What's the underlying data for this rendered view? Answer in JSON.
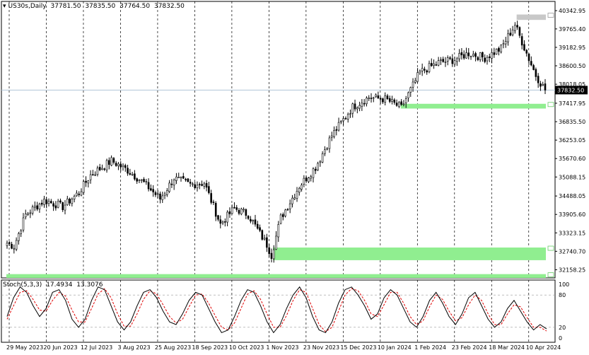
{
  "header": {
    "symbol": "US30s,Daily",
    "open": "37781.50",
    "high": "37835.50",
    "low": "37764.50",
    "close": "37832.50"
  },
  "indicator": {
    "name": "Stoch(5,3,3)",
    "k_value": "17.4934",
    "d_value": "13.3076"
  },
  "current_price_label": "37832.50",
  "colors": {
    "background": "#ffffff",
    "candles": "#000000",
    "zone_green": "#90ee90",
    "zone_gray": "#c8c8c8",
    "stoch_k": "#000000",
    "stoch_d": "#e00000",
    "current_line": "#b0c4d8"
  },
  "chart_data": [
    {
      "type": "candlestick",
      "title": "US30s,Daily",
      "ylim": [
        31900,
        40500
      ],
      "y_ticks": [
        "40342.95",
        "39765.40",
        "39182.95",
        "38600.50",
        "38018.05",
        "37417.95",
        "36835.50",
        "36253.05",
        "35670.60",
        "35088.15",
        "34488.05",
        "33905.60",
        "33323.15",
        "32740.70",
        "32158.25"
      ],
      "x_ticks": [
        "29 May 2023",
        "20 Jun 2023",
        "12 Jul 2023",
        "3 Aug 2023",
        "25 Aug 2023",
        "18 Sep 2023",
        "10 Oct 2023",
        "1 Nov 2023",
        "23 Nov 2023",
        "15 Dec 2023",
        "10 Jan 2024",
        "1 Feb 2024",
        "23 Feb 2024",
        "18 Mar 2024",
        "10 Apr 2024"
      ],
      "current_price": 37832.5,
      "zones": [
        {
          "from_index": 0,
          "to_index": 232,
          "low": 31900,
          "high": 32020,
          "color": "green"
        },
        {
          "from_index": 115,
          "to_index": 232,
          "low": 32460,
          "high": 32860,
          "color": "green"
        },
        {
          "from_index": 170,
          "to_index": 232,
          "low": 37250,
          "high": 37400,
          "color": "green"
        },
        {
          "from_index": 220,
          "to_index": 232,
          "low": 40050,
          "high": 40220,
          "color": "gray"
        }
      ],
      "close_anchors": [
        [
          0,
          33000
        ],
        [
          3,
          32900
        ],
        [
          8,
          33900
        ],
        [
          16,
          34350
        ],
        [
          24,
          34150
        ],
        [
          31,
          34600
        ],
        [
          36,
          35150
        ],
        [
          45,
          35600
        ],
        [
          52,
          35300
        ],
        [
          59,
          34900
        ],
        [
          66,
          34400
        ],
        [
          72,
          35050
        ],
        [
          79,
          34850
        ],
        [
          85,
          34900
        ],
        [
          92,
          33600
        ],
        [
          98,
          34100
        ],
        [
          104,
          33900
        ],
        [
          112,
          32950
        ],
        [
          114,
          32620
        ],
        [
          118,
          33800
        ],
        [
          126,
          34800
        ],
        [
          133,
          35400
        ],
        [
          140,
          36400
        ],
        [
          149,
          37300
        ],
        [
          156,
          37600
        ],
        [
          163,
          37550
        ],
        [
          170,
          37280
        ],
        [
          178,
          38400
        ],
        [
          186,
          38700
        ],
        [
          193,
          38800
        ],
        [
          199,
          39000
        ],
        [
          206,
          38850
        ],
        [
          213,
          39150
        ],
        [
          219,
          39900
        ],
        [
          224,
          39000
        ],
        [
          228,
          38300
        ],
        [
          232,
          37832
        ]
      ]
    },
    {
      "type": "line",
      "title": "Stoch(5,3,3)",
      "ylim": [
        0,
        100
      ],
      "y_ticks": [
        "100",
        "80",
        "20",
        "0"
      ],
      "levels": [
        80,
        20
      ],
      "series": [
        {
          "name": "K",
          "values": [
            40,
            75,
            95,
            85,
            60,
            40,
            55,
            85,
            90,
            70,
            35,
            20,
            35,
            70,
            95,
            90,
            60,
            30,
            15,
            30,
            60,
            85,
            90,
            75,
            50,
            30,
            25,
            45,
            70,
            85,
            80,
            55,
            30,
            10,
            15,
            40,
            70,
            90,
            85,
            60,
            30,
            10,
            25,
            55,
            80,
            95,
            75,
            40,
            15,
            10,
            30,
            65,
            90,
            95,
            80,
            60,
            35,
            45,
            75,
            90,
            80,
            55,
            30,
            20,
            40,
            70,
            85,
            65,
            40,
            25,
            45,
            75,
            85,
            60,
            35,
            20,
            30,
            55,
            70,
            50,
            30,
            15,
            25,
            17
          ]
        },
        {
          "name": "D",
          "values": [
            35,
            60,
            85,
            88,
            72,
            52,
            50,
            70,
            85,
            78,
            52,
            30,
            30,
            55,
            82,
            92,
            75,
            45,
            22,
            22,
            45,
            72,
            88,
            82,
            62,
            40,
            28,
            35,
            58,
            80,
            82,
            65,
            42,
            20,
            15,
            28,
            55,
            82,
            88,
            72,
            45,
            20,
            20,
            42,
            70,
            90,
            85,
            55,
            25,
            12,
            20,
            50,
            80,
            92,
            88,
            70,
            45,
            40,
            62,
            85,
            85,
            65,
            40,
            25,
            32,
            58,
            80,
            72,
            50,
            32,
            38,
            62,
            80,
            70,
            45,
            25,
            25,
            45,
            62,
            58,
            38,
            20,
            20,
            13
          ]
        }
      ]
    }
  ]
}
